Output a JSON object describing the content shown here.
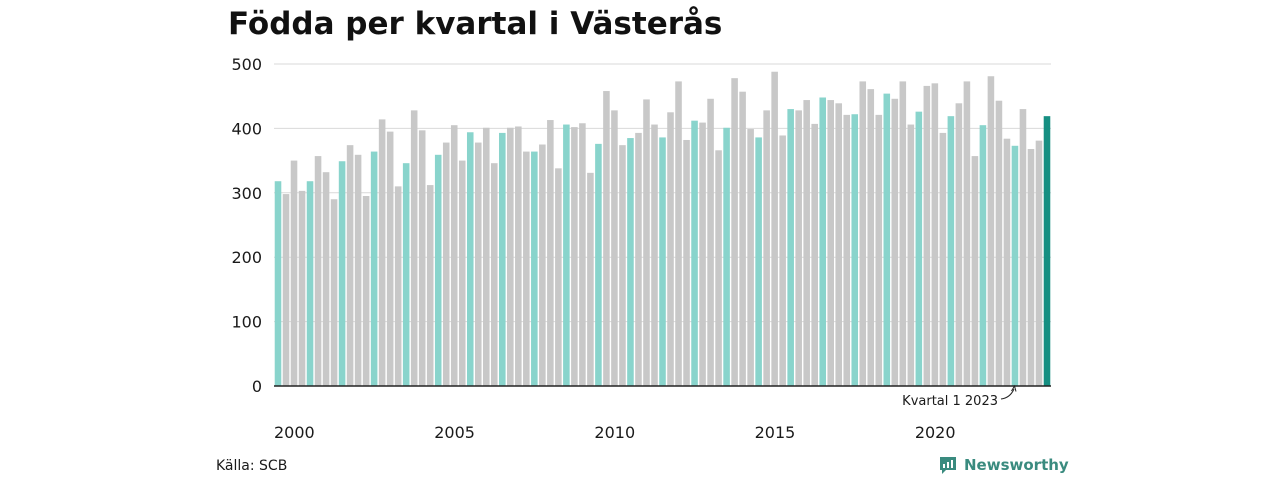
{
  "chart_data": {
    "type": "bar",
    "title": "Födda per kvartal i Västerås",
    "xlabel": "",
    "ylabel": "",
    "ylim": [
      0,
      500
    ],
    "yticks": [
      0,
      100,
      200,
      300,
      400,
      500
    ],
    "xticks": [
      "2000",
      "2005",
      "2010",
      "2015",
      "2020"
    ],
    "grid": true,
    "legend": "none",
    "start_year": 2000,
    "colors": {
      "q1": "#89d4cc",
      "other": "#c8c8c8",
      "latest": "#168f82"
    },
    "annotation": "Kvartal 1 2023",
    "series": [
      {
        "values": [
          318,
          298,
          350,
          303,
          318,
          357,
          332,
          290,
          349,
          374,
          359,
          295,
          364,
          414,
          395,
          310,
          346,
          428,
          397,
          312,
          359,
          378,
          405,
          350,
          394,
          378,
          401,
          346,
          393,
          401,
          403,
          364,
          364,
          375,
          413,
          338,
          406,
          402,
          408,
          331,
          376,
          458,
          428,
          374,
          385,
          393,
          445,
          406,
          386,
          425,
          473,
          382,
          412,
          409,
          446,
          366,
          401,
          478,
          457,
          399,
          386,
          428,
          488,
          389,
          430,
          428,
          444,
          407,
          448,
          444,
          439,
          421,
          422,
          473,
          461,
          421,
          454,
          446,
          473,
          406,
          426,
          466,
          470,
          393,
          419,
          439,
          473,
          357,
          405,
          481,
          443,
          384,
          373,
          430,
          368,
          381,
          419
        ]
      }
    ]
  },
  "source": "Källa: SCB",
  "brand": {
    "name": "Newsworthy",
    "icon": "newsworthy-logo-icon"
  }
}
